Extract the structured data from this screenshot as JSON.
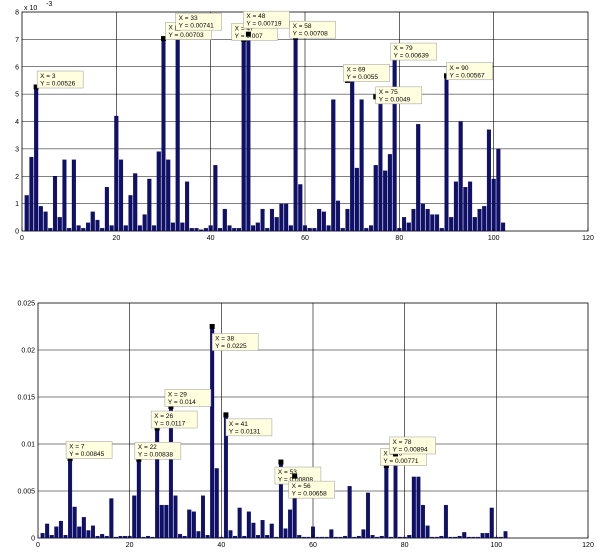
{
  "chart_data": [
    {
      "type": "bar",
      "exponent_label": "x 10",
      "exponent_power": "-3",
      "scale": 0.001,
      "xlim": [
        0,
        120
      ],
      "ylim": [
        0,
        0.008
      ],
      "xticks": [
        0,
        20,
        40,
        60,
        80,
        100,
        120
      ],
      "yticks": [
        0,
        1,
        2,
        3,
        4,
        5,
        6,
        7,
        8
      ],
      "ytick_values": [
        0,
        0.001,
        0.002,
        0.003,
        0.004,
        0.005,
        0.006,
        0.007,
        0.008
      ],
      "grid": true,
      "bar_color": "#0f0f6e",
      "x": [
        1,
        2,
        3,
        4,
        5,
        6,
        7,
        8,
        9,
        10,
        11,
        12,
        13,
        14,
        15,
        16,
        17,
        18,
        19,
        20,
        21,
        22,
        23,
        24,
        25,
        26,
        27,
        28,
        29,
        30,
        31,
        32,
        33,
        34,
        35,
        36,
        37,
        38,
        39,
        40,
        41,
        42,
        43,
        44,
        45,
        46,
        47,
        48,
        49,
        50,
        51,
        52,
        53,
        54,
        55,
        56,
        57,
        58,
        59,
        60,
        61,
        62,
        63,
        64,
        65,
        66,
        67,
        68,
        69,
        70,
        71,
        72,
        73,
        74,
        75,
        76,
        77,
        78,
        79,
        80,
        81,
        82,
        83,
        84,
        85,
        86,
        87,
        88,
        89,
        90,
        91,
        92,
        93,
        94,
        95,
        96,
        97,
        98,
        99,
        100,
        101,
        102
      ],
      "values": [
        0.0013,
        0.0027,
        0.00526,
        0.0009,
        0.0007,
        0.0001,
        0.002,
        0.0005,
        0.0026,
        0.0001,
        0.0026,
        0.0002,
        0.0001,
        0.0003,
        0.0007,
        0.0004,
        0.0001,
        0.0016,
        0.0002,
        0.0042,
        0.0026,
        0.0002,
        0.0013,
        0.0021,
        0.0002,
        0.0006,
        0.0019,
        0.0002,
        0.0029,
        0.00703,
        0.0026,
        0.0003,
        0.00741,
        0.0003,
        0.0018,
        0.0001,
        0.0001,
        5e-05,
        0.0001,
        0.0002,
        0.0024,
        0.0001,
        0.0008,
        0.0002,
        0.0001,
        0.0001,
        0.007,
        0.00719,
        0.0002,
        0.0003,
        0.0008,
        0.0001,
        0.0008,
        0.0005,
        0.001,
        0.001,
        0.0002,
        0.00708,
        0.0017,
        0.0002,
        0.0001,
        0.0001,
        0.0008,
        0.0007,
        0.0002,
        0.0048,
        0.0011,
        0.0001,
        0.0008,
        0.0055,
        0.0023,
        0.0048,
        0.0001,
        0.0002,
        0.0024,
        0.0049,
        0.0022,
        0.0028,
        0.00639,
        0.0001,
        0.0005,
        0.0003,
        0.0008,
        0.0039,
        0.001,
        0.0008,
        0.0006,
        0.0006,
        0.0001,
        0.00567,
        0.0005,
        0.0018,
        0.004,
        0.0016,
        0.0018,
        0.0005,
        0.0008,
        0.0009,
        0.0037,
        0.0019,
        0.003,
        0.0003
      ],
      "annotations": [
        {
          "x": 3,
          "y": 0.00526,
          "line1": "X = 3",
          "line2": "Y = 0.00526"
        },
        {
          "x": 30,
          "y": 0.00703,
          "line1": "X = 30",
          "line2": "Y = 0.00703"
        },
        {
          "x": 33,
          "y": 0.00741,
          "line1": "X = 33",
          "line2": "Y = 0.00741"
        },
        {
          "x": 47,
          "y": 0.007,
          "line1": "X = 47",
          "line2": "Y = 0.007"
        },
        {
          "x": 48,
          "y": 0.00719,
          "line1": "X = 48",
          "line2": "Y = 0.00719"
        },
        {
          "x": 58,
          "y": 0.00708,
          "line1": "X = 58",
          "line2": "Y = 0.00708"
        },
        {
          "x": 69,
          "y": 0.0055,
          "line1": "X = 69",
          "line2": "Y = 0.0055"
        },
        {
          "x": 75,
          "y": 0.0049,
          "line1": "X = 75",
          "line2": "Y = 0.0049"
        },
        {
          "x": 79,
          "y": 0.00639,
          "line1": "X = 79",
          "line2": "Y = 0.00639"
        },
        {
          "x": 90,
          "y": 0.00567,
          "line1": "X = 90",
          "line2": "Y = 0.00567"
        }
      ]
    },
    {
      "type": "bar",
      "xlim": [
        0,
        120
      ],
      "ylim": [
        0,
        0.025
      ],
      "xticks": [
        0,
        20,
        40,
        60,
        80,
        100,
        120
      ],
      "yticks": [
        "0",
        "0.005",
        "0.01",
        "0.015",
        "0.02",
        "0.025"
      ],
      "ytick_values": [
        0,
        0.005,
        0.01,
        0.015,
        0.02,
        0.025
      ],
      "grid": true,
      "bar_color": "#0f0f6e",
      "x": [
        1,
        2,
        3,
        4,
        5,
        6,
        7,
        8,
        9,
        10,
        11,
        12,
        13,
        14,
        15,
        16,
        17,
        18,
        19,
        20,
        21,
        22,
        23,
        24,
        25,
        26,
        27,
        28,
        29,
        30,
        31,
        32,
        33,
        34,
        35,
        36,
        37,
        38,
        39,
        40,
        41,
        42,
        43,
        44,
        45,
        46,
        47,
        48,
        49,
        50,
        51,
        52,
        53,
        54,
        55,
        56,
        57,
        58,
        59,
        60,
        61,
        62,
        63,
        64,
        65,
        66,
        67,
        68,
        69,
        70,
        71,
        72,
        73,
        74,
        75,
        76,
        77,
        78,
        79,
        80,
        81,
        82,
        83,
        84,
        85,
        86,
        87,
        88,
        89,
        90,
        91,
        92,
        93,
        94,
        95,
        96,
        97,
        98,
        99,
        100,
        101,
        102
      ],
      "values": [
        0.0005,
        0.0015,
        0.0003,
        0.0012,
        0.0018,
        0.0003,
        0.00845,
        0.0033,
        0.0012,
        0.0022,
        0.0008,
        0.0013,
        0.0002,
        0.0004,
        0.0002,
        0.0042,
        0.0001,
        0.0002,
        0.0002,
        0.0002,
        0.0045,
        0.00838,
        0.0001,
        0.0002,
        0.0001,
        0.0117,
        0.0035,
        0.0035,
        0.014,
        0.0045,
        0.0004,
        0.0002,
        0.003,
        0.0028,
        0.0007,
        0.0045,
        0.0003,
        0.0225,
        0.0074,
        0.0001,
        0.0131,
        0.0008,
        0.0002,
        0.0032,
        0.0002,
        0.0028,
        0.0016,
        0.0003,
        0.0019,
        0.0003,
        0.0015,
        0.0001,
        0.00808,
        0.001,
        0.003,
        0.00658,
        0.0003,
        0.0001,
        0.0001,
        0.0012,
        0.0001,
        0.0001,
        0.0001,
        0.0009,
        0.0001,
        0.0001,
        0.0002,
        0.0055,
        0.0001,
        0.0002,
        0.0009,
        0.0048,
        0.0003,
        0.0001,
        0.0002,
        0.00771,
        0.0001,
        0.00894,
        0.0001,
        0.0001,
        0.0003,
        0.0065,
        0.0065,
        0.0035,
        0.0013,
        0.0001,
        0.0001,
        0.0002,
        0.0035,
        0.0001,
        0.0001,
        0.0002,
        0.0006,
        0.0001,
        0.0001,
        0.0001,
        0.0005,
        0.0005,
        0.0032,
        0.0001,
        0.0001,
        0.0007
      ],
      "annotations": [
        {
          "x": 7,
          "y": 0.00845,
          "line1": "X = 7",
          "line2": "Y = 0.00845"
        },
        {
          "x": 22,
          "y": 0.00838,
          "line1": "X = 22",
          "line2": "Y = 0.00838"
        },
        {
          "x": 26,
          "y": 0.0117,
          "line1": "X = 26",
          "line2": "Y = 0.0117"
        },
        {
          "x": 29,
          "y": 0.014,
          "line1": "X = 29",
          "line2": "Y = 0.014"
        },
        {
          "x": 38,
          "y": 0.0225,
          "line1": "X = 38",
          "line2": "Y = 0.0225"
        },
        {
          "x": 41,
          "y": 0.0131,
          "line1": "X = 41",
          "line2": "Y = 0.0131"
        },
        {
          "x": 53,
          "y": 0.00808,
          "line1": "X = 53",
          "line2": "Y = 0.00808"
        },
        {
          "x": 56,
          "y": 0.00658,
          "line1": "X = 56",
          "line2": "Y = 0.00658"
        },
        {
          "x": 76,
          "y": 0.00771,
          "line1": "X = 76",
          "line2": "Y = 0.00771"
        },
        {
          "x": 78,
          "y": 0.00894,
          "line1": "X = 78",
          "line2": "Y = 0.00894"
        }
      ]
    }
  ]
}
